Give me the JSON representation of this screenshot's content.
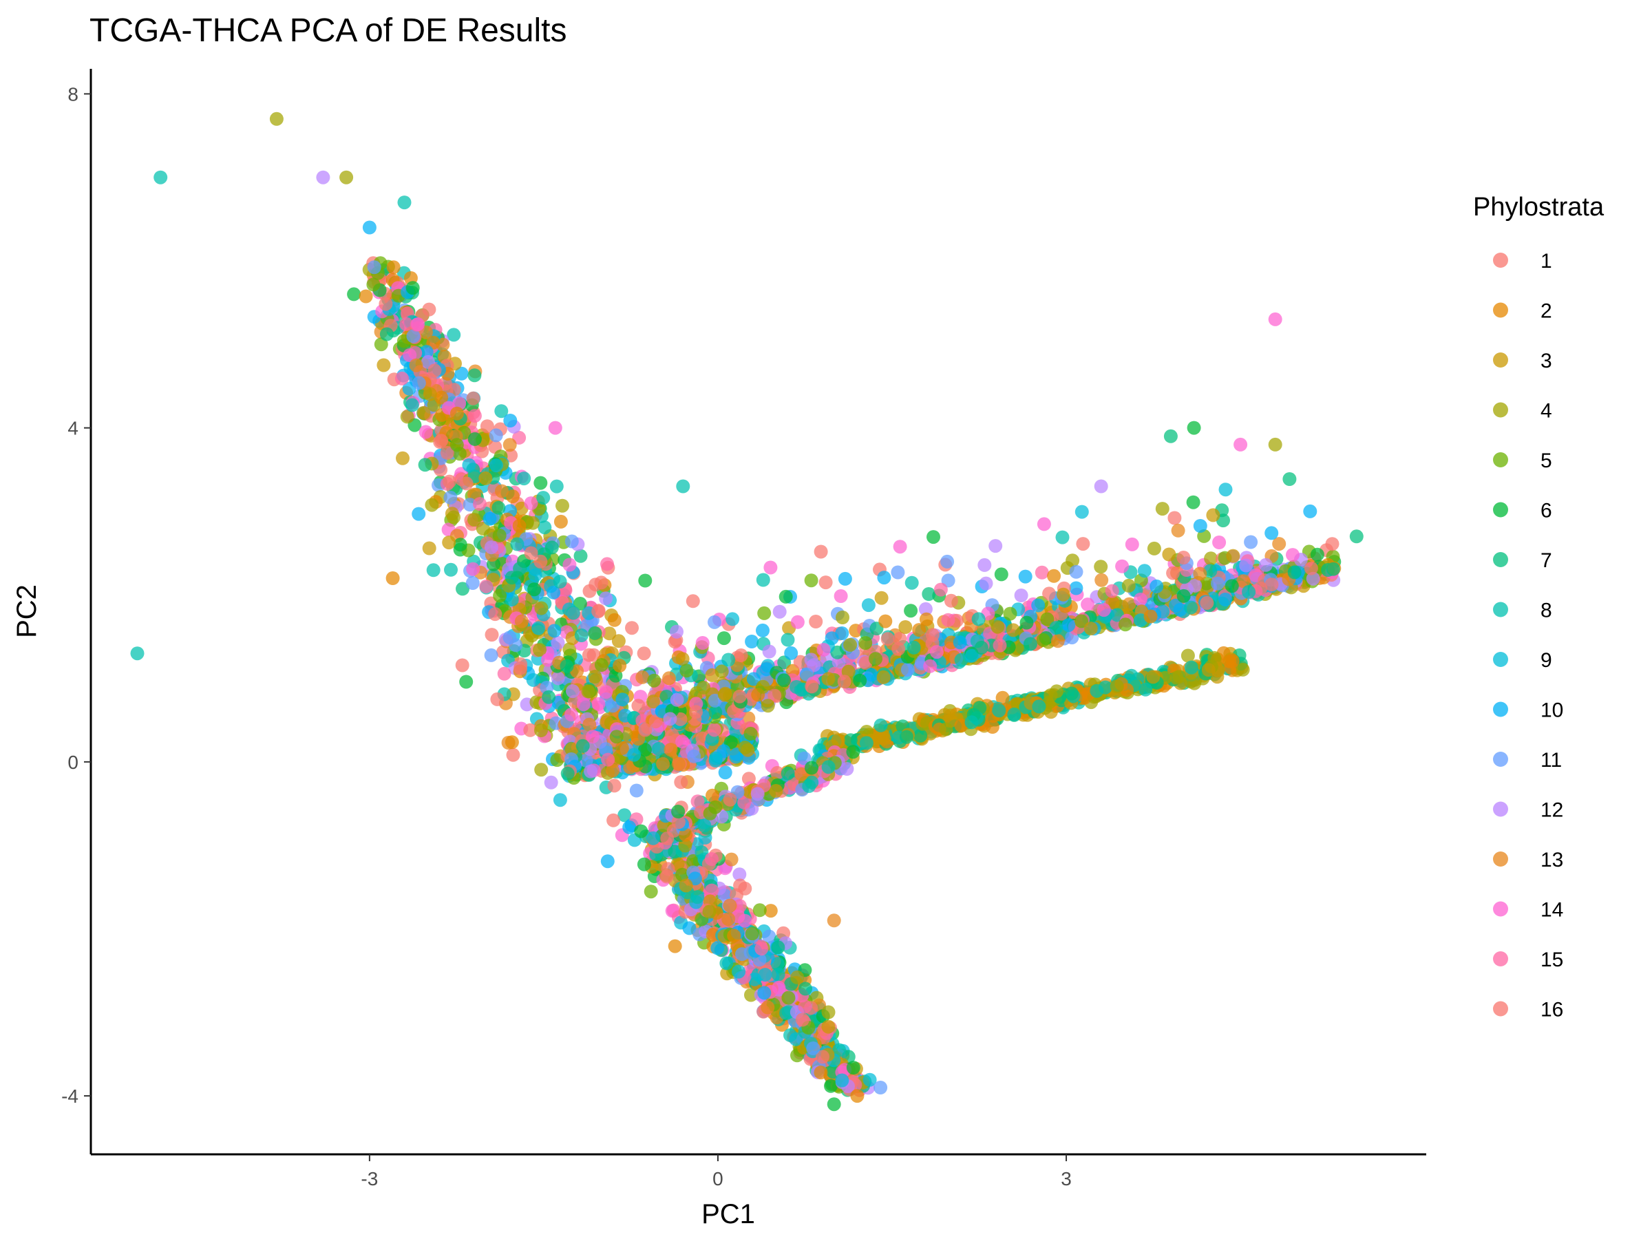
{
  "chart_data": {
    "type": "scatter",
    "title": "TCGA-THCA PCA of DE Results",
    "xlabel": "PC1",
    "ylabel": "PC2",
    "xlim": [
      -5.4,
      6.1
    ],
    "ylim": [
      -4.7,
      8.3
    ],
    "x_ticks": [
      -3,
      0,
      3
    ],
    "y_ticks": [
      -4,
      0,
      4,
      8
    ],
    "x_tick_labels": [
      "-3",
      "0",
      "3"
    ],
    "y_tick_labels": [
      "-4",
      "0",
      "4",
      "8"
    ],
    "grid": false,
    "legend": {
      "title": "Phylostrata",
      "position": "right",
      "entries": [
        "1",
        "2",
        "3",
        "4",
        "5",
        "6",
        "7",
        "8",
        "9",
        "10",
        "11",
        "12",
        "13",
        "14",
        "15",
        "16"
      ],
      "colors": [
        "#F8766D",
        "#E58700",
        "#C99800",
        "#A3A500",
        "#6BB100",
        "#00BA38",
        "#00BF7D",
        "#00C0AF",
        "#00BCD8",
        "#00B0F6",
        "#619CFF",
        "#B983FF",
        "#E7861B",
        "#FD61D1",
        "#FF67A4",
        "#F8766D"
      ]
    },
    "structure": {
      "description_none": "",
      "upper_left_arm": {
        "from": [
          -3.0,
          6.2
        ],
        "to": [
          -1.2,
          0.0
        ]
      },
      "right_arm": {
        "from": [
          -1.0,
          0.0
        ],
        "to": [
          5.5,
          2.4
        ]
      },
      "lower_arm": {
        "from": [
          -0.5,
          -0.9
        ],
        "to": [
          1.2,
          -4.0
        ]
      }
    },
    "outliers": [
      {
        "x": -3.8,
        "y": 7.7,
        "group": "4"
      },
      {
        "x": -4.8,
        "y": 7.0,
        "group": "8"
      },
      {
        "x": -5.0,
        "y": 1.3,
        "group": "8"
      },
      {
        "x": -3.4,
        "y": 7.0,
        "group": "12"
      },
      {
        "x": -3.2,
        "y": 7.0,
        "group": "4"
      },
      {
        "x": -2.7,
        "y": 6.7,
        "group": "8"
      },
      {
        "x": -3.0,
        "y": 6.4,
        "group": "10"
      },
      {
        "x": -2.8,
        "y": 2.2,
        "group": "2"
      },
      {
        "x": -2.3,
        "y": 2.3,
        "group": "8"
      },
      {
        "x": -1.9,
        "y": 0.75,
        "group": "1"
      },
      {
        "x": -1.4,
        "y": 4.0,
        "group": "14"
      },
      {
        "x": -0.9,
        "y": -0.7,
        "group": "1"
      },
      {
        "x": -0.3,
        "y": 3.3,
        "group": "8"
      },
      {
        "x": 3.9,
        "y": 3.9,
        "group": "7"
      },
      {
        "x": 4.1,
        "y": 4.0,
        "group": "6"
      },
      {
        "x": 4.5,
        "y": 3.8,
        "group": "14"
      },
      {
        "x": 4.8,
        "y": 3.8,
        "group": "4"
      },
      {
        "x": 4.8,
        "y": 5.3,
        "group": "14"
      },
      {
        "x": 3.3,
        "y": 3.3,
        "group": "12"
      },
      {
        "x": 5.1,
        "y": 3.0,
        "group": "10"
      },
      {
        "x": 5.5,
        "y": 2.7,
        "group": "7"
      },
      {
        "x": 1.0,
        "y": -1.9,
        "group": "13"
      },
      {
        "x": 1.2,
        "y": -4.0,
        "group": "2"
      },
      {
        "x": 1.4,
        "y": -3.9,
        "group": "11"
      },
      {
        "x": 1.0,
        "y": -4.1,
        "group": "6"
      }
    ]
  }
}
